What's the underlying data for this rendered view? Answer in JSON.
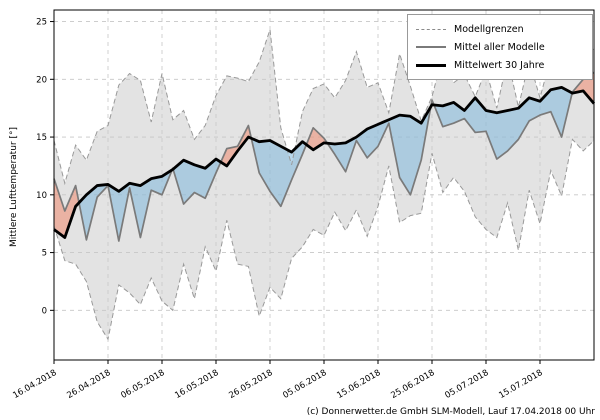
{
  "figure": {
    "ylabel": "Mittlere Lufttemperatur [°]",
    "caption": "(c) Donnerwetter.de GmbH SLM-Modell, Lauf 17.04.2018 00 Uhr"
  },
  "legend": {
    "items": [
      {
        "label": "Modellgrenzen",
        "style": "dashed"
      },
      {
        "label": "Mittel aller Modelle",
        "style": "gray"
      },
      {
        "label": "Mittelwert 30 Jahre",
        "style": "black"
      }
    ]
  },
  "colors": {
    "band_fill": "#e3e3e3",
    "bound_line": "#999999",
    "mean_line": "#7a7a7a",
    "clim_line": "#000000",
    "below_fill": "#7fb8dc",
    "above_fill": "#f08a70",
    "fill_opacity": 0.55,
    "grid": "#c6c6c6",
    "frame": "#000000"
  },
  "chart_data": {
    "type": "line",
    "title": "",
    "xlabel": "",
    "ylabel": "Mittlere Lufttemperatur [°]",
    "x_unit": "days since 16.04.2018 (sampled every 2 days)",
    "xlim": [
      0,
      100
    ],
    "ylim": [
      -4.3,
      26
    ],
    "grid": true,
    "legend_position": "upper right",
    "x": [
      0,
      2,
      4,
      6,
      8,
      10,
      12,
      14,
      16,
      18,
      20,
      22,
      24,
      26,
      28,
      30,
      32,
      34,
      36,
      38,
      40,
      42,
      44,
      46,
      48,
      50,
      52,
      54,
      56,
      58,
      60,
      62,
      64,
      66,
      68,
      70,
      72,
      74,
      76,
      78,
      80,
      82,
      84,
      86,
      88,
      90,
      92,
      94,
      96,
      98,
      100
    ],
    "x_tick_days": [
      0,
      10,
      20,
      30,
      40,
      50,
      60,
      70,
      80,
      90
    ],
    "x_tick_labels": [
      "16.04.2018",
      "26.04.2018",
      "06.05.2018",
      "16.05.2018",
      "26.05.2018",
      "05.06.2018",
      "15.06.2018",
      "25.06.2018",
      "05.07.2018",
      "15.07.2018"
    ],
    "y_ticks": [
      0,
      5,
      10,
      15,
      20,
      25
    ],
    "series": [
      {
        "key": "upper",
        "name": "Modellgrenzen (obere Grenze)",
        "style": "dashed",
        "values": [
          14.7,
          11.0,
          14.3,
          13.0,
          15.5,
          16.0,
          19.5,
          20.5,
          19.9,
          16.3,
          20.5,
          16.5,
          17.3,
          14.8,
          16.0,
          18.6,
          20.3,
          20.1,
          19.8,
          21.5,
          24.3,
          15.8,
          12.6,
          17.2,
          19.2,
          19.6,
          18.4,
          19.9,
          22.4,
          19.3,
          19.7,
          17.1,
          22.2,
          19.4,
          16.4,
          18.5,
          22.1,
          19.7,
          20.4,
          18.5,
          20.8,
          17.5,
          21.8,
          17.6,
          21.6,
          18.4,
          21.9,
          20.9,
          21.3,
          21.6,
          22.7
        ]
      },
      {
        "key": "lower",
        "name": "Modellgrenzen (untere Grenze)",
        "style": "dashed",
        "values": [
          7.3,
          4.3,
          4.0,
          2.5,
          -1.0,
          -2.5,
          2.2,
          1.5,
          0.5,
          2.8,
          0.8,
          0.0,
          4.0,
          1.0,
          5.5,
          3.4,
          7.8,
          4.0,
          3.8,
          -0.5,
          2.0,
          1.0,
          4.5,
          5.5,
          7.0,
          6.5,
          8.5,
          6.9,
          8.7,
          6.4,
          9.0,
          12.5,
          7.6,
          8.2,
          8.4,
          13.6,
          10.2,
          11.5,
          10.3,
          8.1,
          7.0,
          6.3,
          9.3,
          5.2,
          10.4,
          7.5,
          12.1,
          9.9,
          14.8,
          13.8,
          14.7
        ]
      },
      {
        "key": "mean",
        "name": "Mittel aller Modelle",
        "style": "solid-gray",
        "values": [
          11.4,
          8.6,
          10.8,
          6.1,
          9.8,
          10.8,
          6.0,
          10.6,
          6.3,
          10.4,
          10.0,
          12.3,
          9.2,
          10.2,
          9.7,
          11.9,
          14.0,
          14.2,
          16.0,
          11.9,
          10.3,
          9.0,
          11.3,
          13.5,
          15.8,
          14.9,
          13.5,
          12.0,
          14.7,
          13.2,
          14.2,
          16.2,
          11.5,
          10.0,
          13.0,
          18.2,
          15.9,
          16.2,
          16.6,
          15.4,
          15.5,
          13.1,
          13.8,
          14.8,
          16.4,
          16.9,
          17.2,
          15.0,
          18.9,
          20.0,
          20.6
        ]
      },
      {
        "key": "clim",
        "name": "Mittelwert 30 Jahre",
        "style": "solid-black",
        "values": [
          7.0,
          6.3,
          9.0,
          10.0,
          10.8,
          10.9,
          10.3,
          11.0,
          10.8,
          11.4,
          11.6,
          12.2,
          13.0,
          12.6,
          12.3,
          13.1,
          12.5,
          13.8,
          15.0,
          14.6,
          14.7,
          14.2,
          13.7,
          14.6,
          13.9,
          14.5,
          14.4,
          14.5,
          15.0,
          15.7,
          16.1,
          16.5,
          16.9,
          16.8,
          16.2,
          17.8,
          17.7,
          18.0,
          17.3,
          18.4,
          17.3,
          17.1,
          17.3,
          17.5,
          18.4,
          18.1,
          19.1,
          19.3,
          18.8,
          19.0,
          17.9
        ]
      }
    ],
    "fills": [
      {
        "name": "model-spread-band",
        "between": [
          "upper",
          "lower"
        ],
        "color_key": "band_fill"
      },
      {
        "name": "mean-below-climate",
        "between": [
          "mean",
          "clim"
        ],
        "condition": "mean<clim",
        "color_key": "below_fill"
      },
      {
        "name": "mean-above-climate",
        "between": [
          "mean",
          "clim"
        ],
        "condition": "mean>clim",
        "color_key": "above_fill"
      }
    ]
  }
}
